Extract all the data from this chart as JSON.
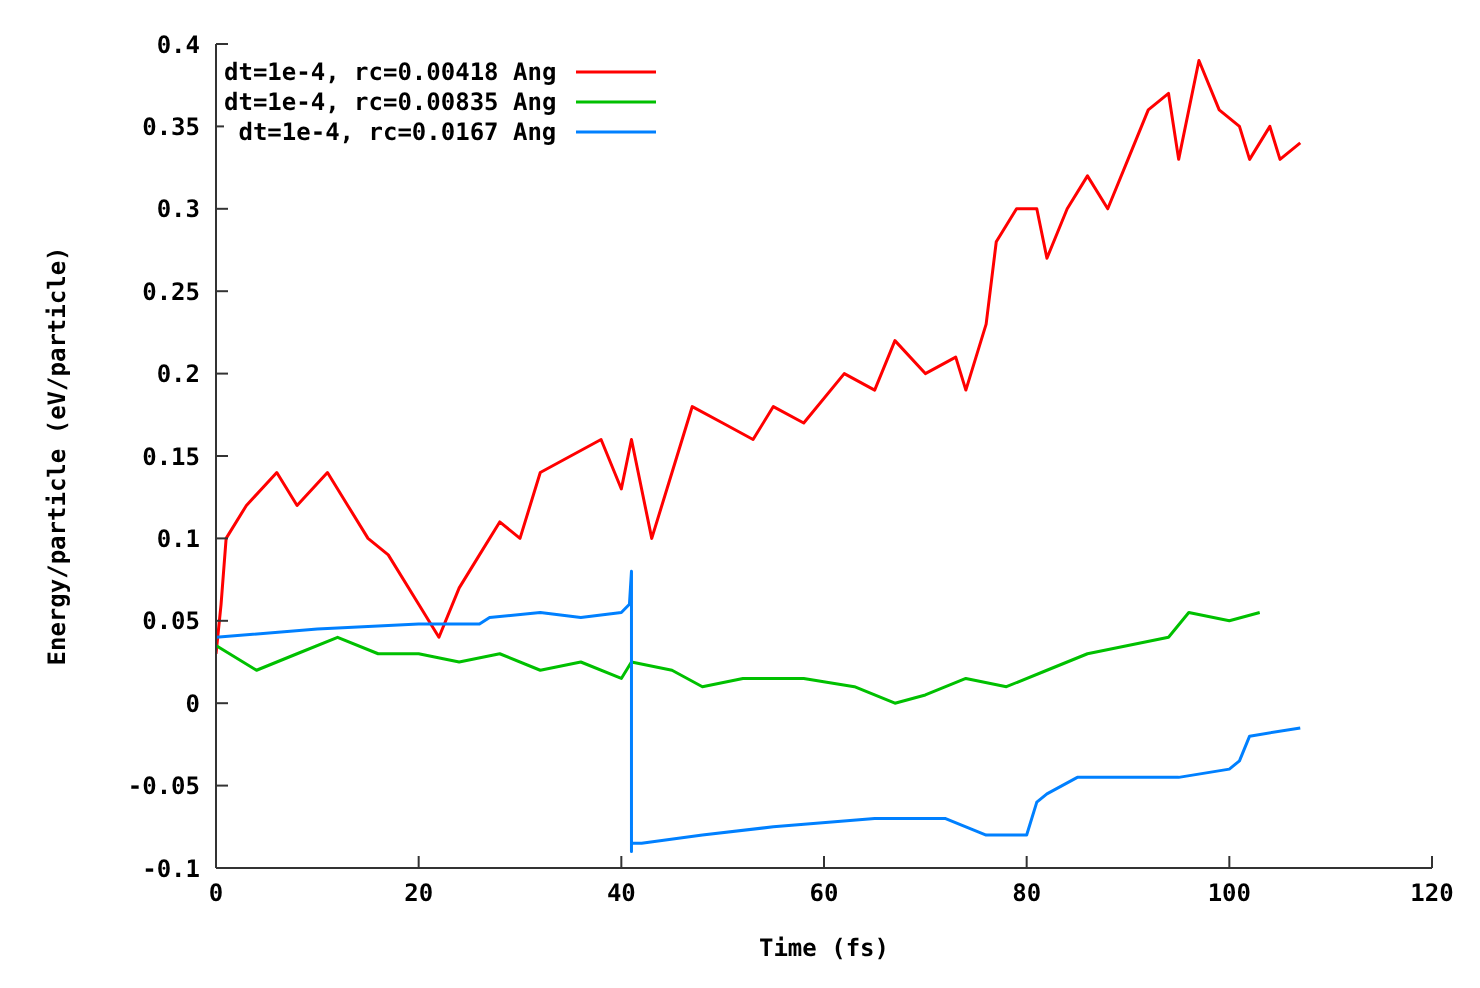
{
  "chart_data": {
    "type": "line",
    "xlabel": "Time (fs)",
    "ylabel": "Energy/particle (eV/particle)",
    "xlim": [
      0,
      120
    ],
    "xticks": [
      0,
      20,
      40,
      60,
      80,
      100,
      120
    ],
    "ylim": [
      -0.1,
      0.4
    ],
    "yticks": [
      -0.1,
      -0.05,
      0,
      0.05,
      0.1,
      0.15,
      0.2,
      0.25,
      0.3,
      0.35,
      0.4
    ],
    "grid": false,
    "legend": "top left",
    "line_style": "solid",
    "marker": "none",
    "series": [
      {
        "name": "dt=1e-4, rc=0.00418 Ang",
        "color": "#ff0000",
        "x": [
          0,
          0.5,
          1,
          3,
          6,
          8,
          11,
          13,
          15,
          17,
          20,
          21,
          22,
          24,
          26,
          28,
          30,
          32,
          35,
          38,
          40,
          41,
          43,
          45,
          47,
          50,
          53,
          55,
          58,
          62,
          65,
          67,
          70,
          73,
          74,
          76,
          77,
          79,
          81,
          82,
          84,
          86,
          88,
          90,
          92,
          94,
          95,
          97,
          99,
          101,
          102,
          104,
          105,
          107
        ],
        "values": [
          0.03,
          0.06,
          0.1,
          0.12,
          0.14,
          0.12,
          0.14,
          0.12,
          0.1,
          0.09,
          0.06,
          0.05,
          0.04,
          0.07,
          0.09,
          0.11,
          0.1,
          0.14,
          0.15,
          0.16,
          0.13,
          0.16,
          0.1,
          0.14,
          0.18,
          0.17,
          0.16,
          0.18,
          0.17,
          0.2,
          0.19,
          0.22,
          0.2,
          0.21,
          0.19,
          0.23,
          0.28,
          0.3,
          0.3,
          0.27,
          0.3,
          0.32,
          0.3,
          0.33,
          0.36,
          0.37,
          0.33,
          0.39,
          0.36,
          0.35,
          0.33,
          0.35,
          0.33,
          0.34
        ]
      },
      {
        "name": "dt=1e-4, rc=0.00835 Ang",
        "color": "#00c000",
        "x": [
          0,
          4,
          8,
          12,
          16,
          20,
          24,
          28,
          32,
          36,
          40,
          41,
          45,
          48,
          52,
          58,
          63,
          67,
          70,
          74,
          78,
          82,
          86,
          90,
          94,
          96,
          100,
          103
        ],
        "values": [
          0.035,
          0.02,
          0.03,
          0.04,
          0.03,
          0.03,
          0.025,
          0.03,
          0.02,
          0.025,
          0.015,
          0.025,
          0.02,
          0.01,
          0.015,
          0.015,
          0.01,
          0,
          0.005,
          0.015,
          0.01,
          0.02,
          0.03,
          0.035,
          0.04,
          0.055,
          0.05,
          0.055
        ]
      },
      {
        "name": "dt=1e-4, rc=0.0167 Ang",
        "color": "#0080ff",
        "x": [
          0,
          10,
          20,
          26,
          27,
          32,
          36,
          40,
          40.8,
          41,
          41,
          41,
          42,
          48,
          55,
          65,
          72,
          76,
          80,
          81,
          82,
          85,
          95,
          100,
          101,
          102,
          107
        ],
        "values": [
          0.04,
          0.045,
          0.048,
          0.048,
          0.052,
          0.055,
          0.052,
          0.055,
          0.06,
          0.08,
          -0.09,
          -0.085,
          -0.085,
          -0.08,
          -0.075,
          -0.07,
          -0.07,
          -0.08,
          -0.08,
          -0.06,
          -0.055,
          -0.045,
          -0.045,
          -0.04,
          -0.035,
          -0.02,
          -0.015
        ]
      }
    ]
  }
}
